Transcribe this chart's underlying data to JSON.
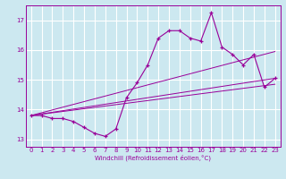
{
  "xlabel": "Windchill (Refroidissement éolien,°C)",
  "bg_color": "#cce8f0",
  "line_color": "#990099",
  "grid_color": "#ffffff",
  "hours": [
    0,
    1,
    2,
    3,
    4,
    5,
    6,
    7,
    8,
    9,
    10,
    11,
    12,
    13,
    14,
    15,
    16,
    17,
    18,
    19,
    20,
    21,
    22,
    23
  ],
  "windchill": [
    13.8,
    13.8,
    13.7,
    13.7,
    13.6,
    13.4,
    13.2,
    13.1,
    13.35,
    14.4,
    14.9,
    15.5,
    16.4,
    16.65,
    16.65,
    16.4,
    16.3,
    17.25,
    16.1,
    15.85,
    15.5,
    15.85,
    14.75,
    15.05
  ],
  "trend_lines": [
    [
      13.8,
      15.05
    ],
    [
      13.8,
      14.85
    ],
    [
      13.8,
      15.95
    ]
  ],
  "ylim": [
    12.75,
    17.5
  ],
  "yticks": [
    13,
    14,
    15,
    16,
    17
  ],
  "xticks": [
    0,
    1,
    2,
    3,
    4,
    5,
    6,
    7,
    8,
    9,
    10,
    11,
    12,
    13,
    14,
    15,
    16,
    17,
    18,
    19,
    20,
    21,
    22,
    23
  ],
  "figsize": [
    3.2,
    2.0
  ],
  "dpi": 100
}
